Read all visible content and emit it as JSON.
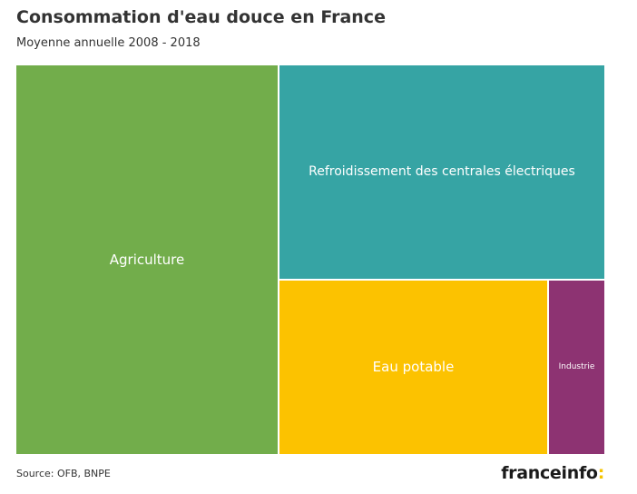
{
  "header": {
    "title": "Consommation d'eau douce en France",
    "subtitle": "Moyenne annuelle 2008 - 2018"
  },
  "chart_data": {
    "type": "treemap",
    "title": "Consommation d'eau douce en France",
    "subtitle": "Moyenne annuelle 2008 - 2018",
    "series": [
      {
        "name": "Agriculture",
        "value": 44.6,
        "color": "#72ad4b"
      },
      {
        "name": "Refroidissement des centrales électriques",
        "value": 30.5,
        "color": "#36a4a4"
      },
      {
        "name": "Eau potable",
        "value": 20.6,
        "color": "#fcc200"
      },
      {
        "name": "Industrie",
        "value": 4.3,
        "color": "#8d3372"
      }
    ],
    "border_color": "#ffffff"
  },
  "footer": {
    "source": "Source: OFB, BNPE",
    "logo_text": "franceinfo",
    "logo_colon": ":"
  },
  "colors": {
    "text": "#333333",
    "logo_accent": "#f5c400"
  }
}
